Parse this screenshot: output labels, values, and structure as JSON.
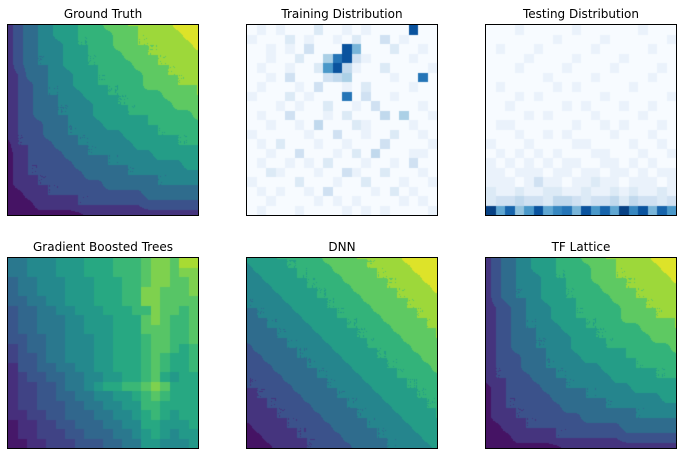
{
  "figure": {
    "background": "#ffffff",
    "text_color": "#000000"
  },
  "chart_data": {
    "type": "heatmap",
    "layout": "2 rows x 3 columns of image plots, no axis ticks or labels",
    "value_range": [
      0,
      1
    ],
    "grid_encoding": "rows listed top-to-bottom; each hex digit 0-f is the cell value divided by 15",
    "colormaps": {
      "viridis": [
        "#440154",
        "#472d7b",
        "#3b528b",
        "#2c728e",
        "#21918c",
        "#28ae80",
        "#5ec962",
        "#addc30",
        "#fde725"
      ],
      "blues": [
        "#f7fbff",
        "#deebf7",
        "#c6dbef",
        "#9ecae1",
        "#6baed6",
        "#4292c6",
        "#2171b5",
        "#08519c",
        "#08306b"
      ]
    },
    "panels": [
      {
        "title": "Ground Truth",
        "plot_type": "contourf",
        "colormap": "viridis",
        "render": "contour",
        "levels": 10,
        "grid": [
          "24567889aabbccdddeef",
          "245678899aabbccdddee",
          "245677899aabbcccddde",
          "2456678899aabbcccddd",
          "2456678899aaabbcccdd",
          "23556778899aaabbcccd",
          "234566788999aabbbccc",
          "2345667788999aaabbbc",
          "23455667788999aaabbb",
          "234556677888999aaaab",
          "23445566778888999aaa",
          "2334556667778889999a",
          "13344556667778888999",
          "12344455666677788888",
          "12334445556666777788",
          "12333444555566666777",
          "12233344445555566666",
          "11223333344444555555",
          "11122223333333444444",
          "01111111222222222222"
        ]
      },
      {
        "title": "Training Distribution",
        "plot_type": "histogram2d",
        "colormap": "blues",
        "render": "cells",
        "grid": [
          "01010002001010000d00",
          "10002010010200301000",
          "0010103000d700020010",
          "001002005bd310000100",
          "010010029d4100200001",
          "001030003450000100b0",
          "01000103001020000100",
          "1000201000b030010000",
          "00010100200103000010",
          "01003000102000405001",
          "00100104000210000100",
          "10000010030010020010",
          "01020001001000300001",
          "00100300010204000110",
          "01001010200010010300",
          "00210001003100200010",
          "10000200010020001001",
          "01010010300001020100",
          "00100001010100001010",
          "01000100001010100001"
        ]
      },
      {
        "title": "Testing Distribution",
        "plot_type": "histogram2d",
        "colormap": "blues",
        "render": "cells",
        "grid": [
          "00010000010000001000",
          "00000001000010000001",
          "01000100000100000100",
          "00001000010000100000",
          "00010000100001000010",
          "00000010000100000100",
          "01000001010000010000",
          "00010100000010000001",
          "00100000101000100100",
          "00001010000100001000",
          "01100000010010100010",
          "00010010100001000100",
          "10001000011000010010",
          "01010101000110001001",
          "10101010110011010100",
          "11011101101101101011",
          "11101311011211011101",
          "21121122112112121121",
          "23343324432334243323",
          "e8c69d8ab7d9c8ead7c9"
        ]
      },
      {
        "title": "Gradient Boosted Trees",
        "plot_type": "contourf",
        "colormap": "viridis",
        "render": "cells",
        "grid": [
          "66777888999aaabccbdd",
          "66777888999aaabccbcc",
          "566777888999aabccbbc",
          "566777888999aaccbbbc",
          "556677888999aaccbbbb",
          "4556677888999aacbbab",
          "45566677888999bcbaab",
          "45566677888999bbbaab",
          "44556677788999abbaab",
          "34556677788999abba9a",
          "34456677788999aba99a",
          "24455667788999aba99a",
          "23445566778899ab9899",
          "233445667899aabcb999",
          "23344556677889aba999",
          "23344455667788aa9999",
          "223344555667789a9899",
          "12233445556677998889",
          "12233344555667898788",
          "11223334445566887778"
        ]
      },
      {
        "title": "DNN",
        "plot_type": "contourf",
        "colormap": "viridis",
        "render": "contour",
        "levels": 10,
        "grid": [
          "888999aabbbcccddeeef",
          "7888999aabbbcccddeee",
          "77888999aabbbcccddee",
          "677888999aabbbcccdde",
          "6677888999aabbbcccdd",
          "66677888999aabbbcccd",
          "566677888999aabbbccc",
          "5566677888999aabbbcc",
          "55566677888999aabbbc",
          "455566677888999aabbb",
          "4455566677888999aabb",
          "34455566677888999aab",
          "334455566677888999aa",
          "3334455566677888999a",
          "23334455566677888999",
          "22333445556667788899",
          "22233344555666778889",
          "12223334455566677888",
          "11222333445556667788",
          "01122233344555666778"
        ]
      },
      {
        "title": "TF Lattice",
        "plot_type": "contourf",
        "colormap": "viridis",
        "render": "contour",
        "levels": 10,
        "grid": [
          "24567889aabbccdddeef",
          "245678899aabbccdddee",
          "245677899aabbcccddde",
          "2456678899aabbcccddd",
          "2456678899aaabbcccdd",
          "23456778899aaabbcccd",
          "234566788999aabbbccc",
          "2345667788999aaabbbc",
          "23455667788999aaabbb",
          "234556677888999aaaab",
          "23445566778888999aaa",
          "2334556667778889999a",
          "23344556667778888999",
          "12344455666677788888",
          "12334445556666777788",
          "12333444555566666777",
          "12233344445555566666",
          "11223333344444555555",
          "11122223333333444444",
          "00111111222222222222"
        ]
      }
    ]
  }
}
